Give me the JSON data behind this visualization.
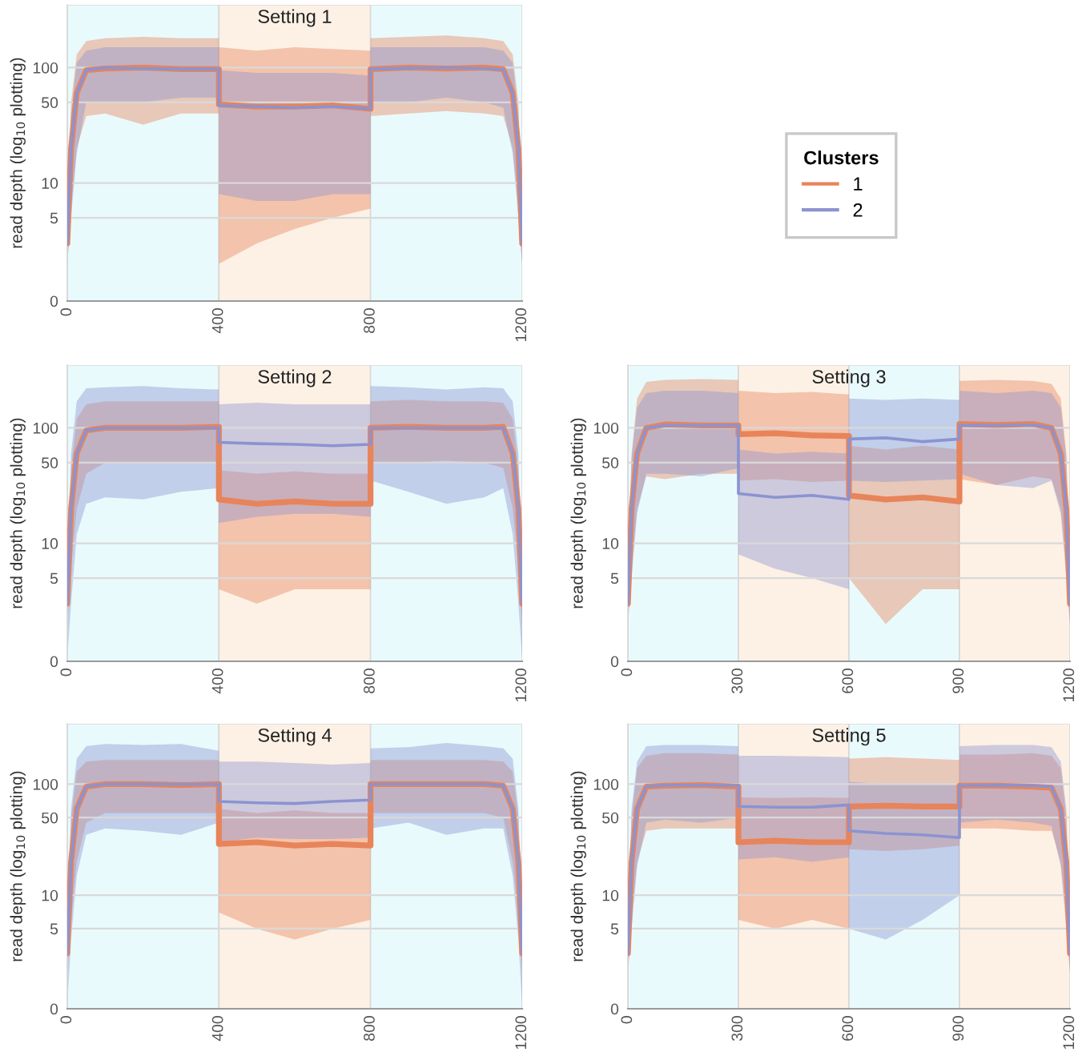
{
  "chart_data": [
    {
      "type": "line",
      "title": "Setting 1",
      "ylabel": "read depth (log$_{10}$ plotting)",
      "legend_title": "Clusters",
      "legend": "right",
      "log": true,
      "grid": "y",
      "x": [
        0,
        10,
        25,
        50,
        100,
        200,
        300,
        400,
        400,
        500,
        600,
        700,
        800,
        800,
        900,
        1000,
        1100,
        1150,
        1175,
        1190,
        1200
      ],
      "xlim": [
        0,
        1200
      ],
      "xticks": [
        0,
        400,
        800,
        1200
      ],
      "ylim": [
        0,
        350
      ],
      "yticks": [
        0,
        5,
        10,
        50,
        100
      ],
      "bands": [
        {
          "axis": "x",
          "from": 0,
          "to": 400,
          "color": "#e9fafc"
        },
        {
          "axis": "x",
          "from": 400,
          "to": 800,
          "color": "#fdf1e5"
        },
        {
          "axis": "x",
          "from": 800,
          "to": 1200,
          "color": "#e9fafc"
        }
      ],
      "series": [
        {
          "name": "1",
          "color": "#e8845a",
          "values": [
            3,
            20,
            60,
            95,
            98,
            100,
            97,
            97,
            48,
            46,
            46,
            47,
            44,
            97,
            100,
            98,
            100,
            97,
            60,
            20,
            3
          ],
          "lower": [
            2,
            6,
            20,
            38,
            40,
            32,
            40,
            40,
            2,
            3,
            4,
            5,
            6,
            38,
            40,
            42,
            40,
            38,
            20,
            6,
            2
          ],
          "upper": [
            5,
            50,
            130,
            170,
            180,
            185,
            180,
            180,
            150,
            140,
            150,
            145,
            140,
            180,
            185,
            190,
            180,
            170,
            130,
            50,
            5
          ]
        },
        {
          "name": "2",
          "color": "#8b93d1",
          "values": [
            3,
            20,
            60,
            95,
            100,
            98,
            97,
            97,
            47,
            46,
            45,
            46,
            44,
            97,
            99,
            100,
            98,
            96,
            60,
            20,
            3
          ],
          "lower": [
            2,
            5,
            18,
            50,
            50,
            50,
            55,
            55,
            8,
            7,
            7,
            8,
            8,
            50,
            50,
            55,
            50,
            45,
            18,
            5,
            2
          ],
          "upper": [
            4,
            40,
            110,
            140,
            150,
            150,
            150,
            150,
            95,
            90,
            90,
            90,
            85,
            150,
            150,
            150,
            150,
            140,
            110,
            40,
            4
          ]
        }
      ]
    },
    {
      "type": "line",
      "title": "Setting 2",
      "ylabel": "read depth (log$_{10}$ plotting)",
      "log": true,
      "grid": "y",
      "x": [
        0,
        10,
        25,
        50,
        100,
        200,
        300,
        400,
        400,
        500,
        600,
        700,
        800,
        800,
        900,
        1000,
        1100,
        1150,
        1175,
        1190,
        1200
      ],
      "xlim": [
        0,
        1200
      ],
      "xticks": [
        0,
        400,
        800,
        1200
      ],
      "ylim": [
        0,
        350
      ],
      "yticks": [
        0,
        5,
        10,
        50,
        100
      ],
      "bands": [
        {
          "axis": "x",
          "from": 0,
          "to": 400,
          "color": "#e9fafc"
        },
        {
          "axis": "x",
          "from": 400,
          "to": 800,
          "color": "#fdf1e5"
        },
        {
          "axis": "x",
          "from": 800,
          "to": 1200,
          "color": "#e9fafc"
        }
      ],
      "series": [
        {
          "color": "#e8845a",
          "values": [
            3,
            20,
            60,
            95,
            100,
            100,
            100,
            102,
            24,
            22,
            23,
            22,
            22,
            100,
            102,
            100,
            100,
            102,
            60,
            20,
            3
          ],
          "lower": [
            2,
            6,
            20,
            40,
            50,
            50,
            50,
            50,
            4,
            3,
            4,
            4,
            4,
            50,
            50,
            52,
            50,
            45,
            20,
            6,
            2
          ],
          "upper": [
            5,
            45,
            120,
            160,
            170,
            170,
            170,
            170,
            43,
            40,
            42,
            40,
            40,
            170,
            175,
            170,
            170,
            165,
            120,
            45,
            5
          ]
        },
        {
          "color": "#8b93d1",
          "values": [
            3,
            20,
            60,
            95,
            100,
            100,
            100,
            100,
            75,
            73,
            72,
            70,
            72,
            100,
            100,
            100,
            100,
            100,
            60,
            20,
            3
          ],
          "lower": [
            1,
            3,
            12,
            22,
            25,
            24,
            28,
            30,
            15,
            17,
            18,
            18,
            17,
            35,
            28,
            22,
            25,
            30,
            12,
            3,
            1
          ],
          "upper": [
            5,
            60,
            170,
            220,
            225,
            230,
            220,
            215,
            160,
            165,
            160,
            160,
            160,
            230,
            225,
            215,
            225,
            220,
            170,
            60,
            5
          ]
        }
      ]
    },
    {
      "type": "line",
      "title": "Setting 3",
      "ylabel": "read depth (log$_{10}$ plotting)",
      "log": true,
      "grid": "y",
      "x": [
        0,
        10,
        25,
        50,
        100,
        200,
        300,
        300,
        400,
        500,
        600,
        600,
        700,
        800,
        900,
        900,
        1000,
        1100,
        1150,
        1175,
        1190,
        1200
      ],
      "xlim": [
        0,
        1200
      ],
      "xticks": [
        0,
        300,
        600,
        900,
        1200
      ],
      "ylim": [
        0,
        350
      ],
      "yticks": [
        0,
        5,
        10,
        50,
        100
      ],
      "bands": [
        {
          "axis": "x",
          "from": 0,
          "to": 300,
          "color": "#e9fafc"
        },
        {
          "axis": "x",
          "from": 300,
          "to": 600,
          "color": "#fdf1e5"
        },
        {
          "axis": "x",
          "from": 600,
          "to": 900,
          "color": "#e9fafc"
        },
        {
          "axis": "x",
          "from": 900,
          "to": 1200,
          "color": "#fdf1e5"
        }
      ],
      "series": [
        {
          "color": "#e8845a",
          "values": [
            3,
            20,
            60,
            100,
            107,
            105,
            105,
            88,
            90,
            86,
            85,
            26,
            24,
            25,
            23,
            108,
            106,
            108,
            100,
            60,
            20,
            3
          ],
          "lower": [
            2,
            6,
            20,
            38,
            36,
            40,
            40,
            35,
            36,
            34,
            35,
            5,
            2,
            4,
            4,
            36,
            32,
            38,
            36,
            20,
            6,
            2
          ],
          "upper": [
            5,
            60,
            180,
            250,
            260,
            265,
            260,
            210,
            200,
            205,
            195,
            70,
            65,
            70,
            65,
            255,
            260,
            255,
            240,
            180,
            60,
            5
          ]
        },
        {
          "color": "#8b93d1",
          "values": [
            3,
            20,
            60,
            100,
            105,
            105,
            105,
            27,
            25,
            26,
            24,
            80,
            82,
            76,
            80,
            105,
            105,
            106,
            100,
            60,
            20,
            3
          ],
          "lower": [
            2,
            5,
            18,
            40,
            40,
            38,
            45,
            8,
            6,
            5,
            4,
            35,
            34,
            35,
            36,
            40,
            32,
            30,
            35,
            18,
            5,
            2
          ],
          "upper": [
            5,
            55,
            150,
            200,
            210,
            210,
            200,
            65,
            60,
            62,
            60,
            180,
            175,
            180,
            175,
            210,
            200,
            210,
            200,
            150,
            55,
            5
          ]
        }
      ]
    },
    {
      "type": "line",
      "title": "Setting 4",
      "ylabel": "read depth (log$_{10}$ plotting)",
      "log": true,
      "grid": "y",
      "x": [
        0,
        10,
        25,
        50,
        100,
        200,
        300,
        400,
        400,
        500,
        600,
        700,
        800,
        800,
        900,
        1000,
        1100,
        1150,
        1175,
        1190,
        1200
      ],
      "xlim": [
        0,
        1200
      ],
      "xticks": [
        0,
        400,
        800,
        1200
      ],
      "ylim": [
        0,
        350
      ],
      "yticks": [
        0,
        5,
        10,
        50,
        100
      ],
      "bands": [
        {
          "axis": "x",
          "from": 0,
          "to": 400,
          "color": "#e9fafc"
        },
        {
          "axis": "x",
          "from": 400,
          "to": 800,
          "color": "#fdf1e5"
        },
        {
          "axis": "x",
          "from": 800,
          "to": 1200,
          "color": "#e9fafc"
        }
      ],
      "series": [
        {
          "color": "#e8845a",
          "values": [
            3,
            20,
            60,
            95,
            100,
            100,
            98,
            100,
            29,
            30,
            28,
            29,
            28,
            100,
            100,
            100,
            100,
            97,
            60,
            20,
            3
          ],
          "lower": [
            2,
            6,
            20,
            45,
            55,
            55,
            55,
            55,
            7,
            5,
            4,
            5,
            6,
            55,
            55,
            55,
            55,
            50,
            20,
            6,
            2
          ],
          "upper": [
            5,
            50,
            130,
            160,
            165,
            165,
            165,
            165,
            60,
            55,
            58,
            55,
            55,
            165,
            165,
            165,
            165,
            160,
            130,
            50,
            5
          ]
        },
        {
          "color": "#8b93d1",
          "values": [
            3,
            20,
            60,
            95,
            100,
            100,
            100,
            100,
            70,
            68,
            67,
            70,
            72,
            100,
            100,
            100,
            100,
            97,
            60,
            20,
            3
          ],
          "lower": [
            1,
            4,
            15,
            35,
            40,
            38,
            35,
            45,
            30,
            33,
            32,
            32,
            33,
            40,
            45,
            35,
            40,
            40,
            15,
            4,
            1
          ],
          "upper": [
            5,
            60,
            170,
            220,
            230,
            225,
            230,
            200,
            160,
            160,
            155,
            150,
            155,
            210,
            215,
            235,
            220,
            210,
            170,
            60,
            5
          ]
        }
      ]
    },
    {
      "type": "line",
      "title": "Setting 5",
      "ylabel": "read depth (log$_{10}$ plotting)",
      "log": true,
      "grid": "y",
      "x": [
        0,
        10,
        25,
        50,
        100,
        200,
        300,
        300,
        400,
        500,
        600,
        600,
        700,
        800,
        900,
        900,
        1000,
        1100,
        1150,
        1175,
        1190,
        1200
      ],
      "xlim": [
        0,
        1200
      ],
      "xticks": [
        0,
        300,
        600,
        900,
        1200
      ],
      "ylim": [
        0,
        350
      ],
      "yticks": [
        0,
        5,
        10,
        50,
        100
      ],
      "bands": [
        {
          "axis": "x",
          "from": 0,
          "to": 300,
          "color": "#e9fafc"
        },
        {
          "axis": "x",
          "from": 300,
          "to": 600,
          "color": "#fdf1e5"
        },
        {
          "axis": "x",
          "from": 600,
          "to": 900,
          "color": "#e9fafc"
        },
        {
          "axis": "x",
          "from": 900,
          "to": 1200,
          "color": "#fdf1e5"
        }
      ],
      "series": [
        {
          "color": "#e8845a",
          "values": [
            3,
            20,
            60,
            95,
            97,
            98,
            95,
            30,
            31,
            30,
            30,
            63,
            64,
            63,
            63,
            97,
            97,
            95,
            93,
            60,
            20,
            3
          ],
          "lower": [
            2,
            6,
            20,
            38,
            40,
            40,
            40,
            6,
            5,
            6,
            5,
            26,
            25,
            26,
            28,
            40,
            40,
            38,
            38,
            20,
            6,
            2
          ],
          "upper": [
            5,
            50,
            140,
            180,
            190,
            190,
            185,
            76,
            75,
            76,
            75,
            170,
            175,
            170,
            165,
            185,
            185,
            190,
            180,
            140,
            50,
            5
          ]
        },
        {
          "color": "#8b93d1",
          "values": [
            3,
            20,
            60,
            95,
            98,
            98,
            97,
            63,
            62,
            62,
            65,
            38,
            36,
            35,
            33,
            97,
            98,
            97,
            95,
            60,
            20,
            3
          ],
          "lower": [
            2,
            5,
            18,
            45,
            48,
            45,
            50,
            21,
            22,
            20,
            22,
            5,
            4,
            6,
            10,
            45,
            48,
            45,
            42,
            18,
            5,
            2
          ],
          "upper": [
            5,
            60,
            160,
            220,
            225,
            225,
            220,
            180,
            180,
            178,
            175,
            105,
            100,
            100,
            100,
            220,
            225,
            225,
            215,
            160,
            60,
            5
          ]
        }
      ]
    }
  ]
}
